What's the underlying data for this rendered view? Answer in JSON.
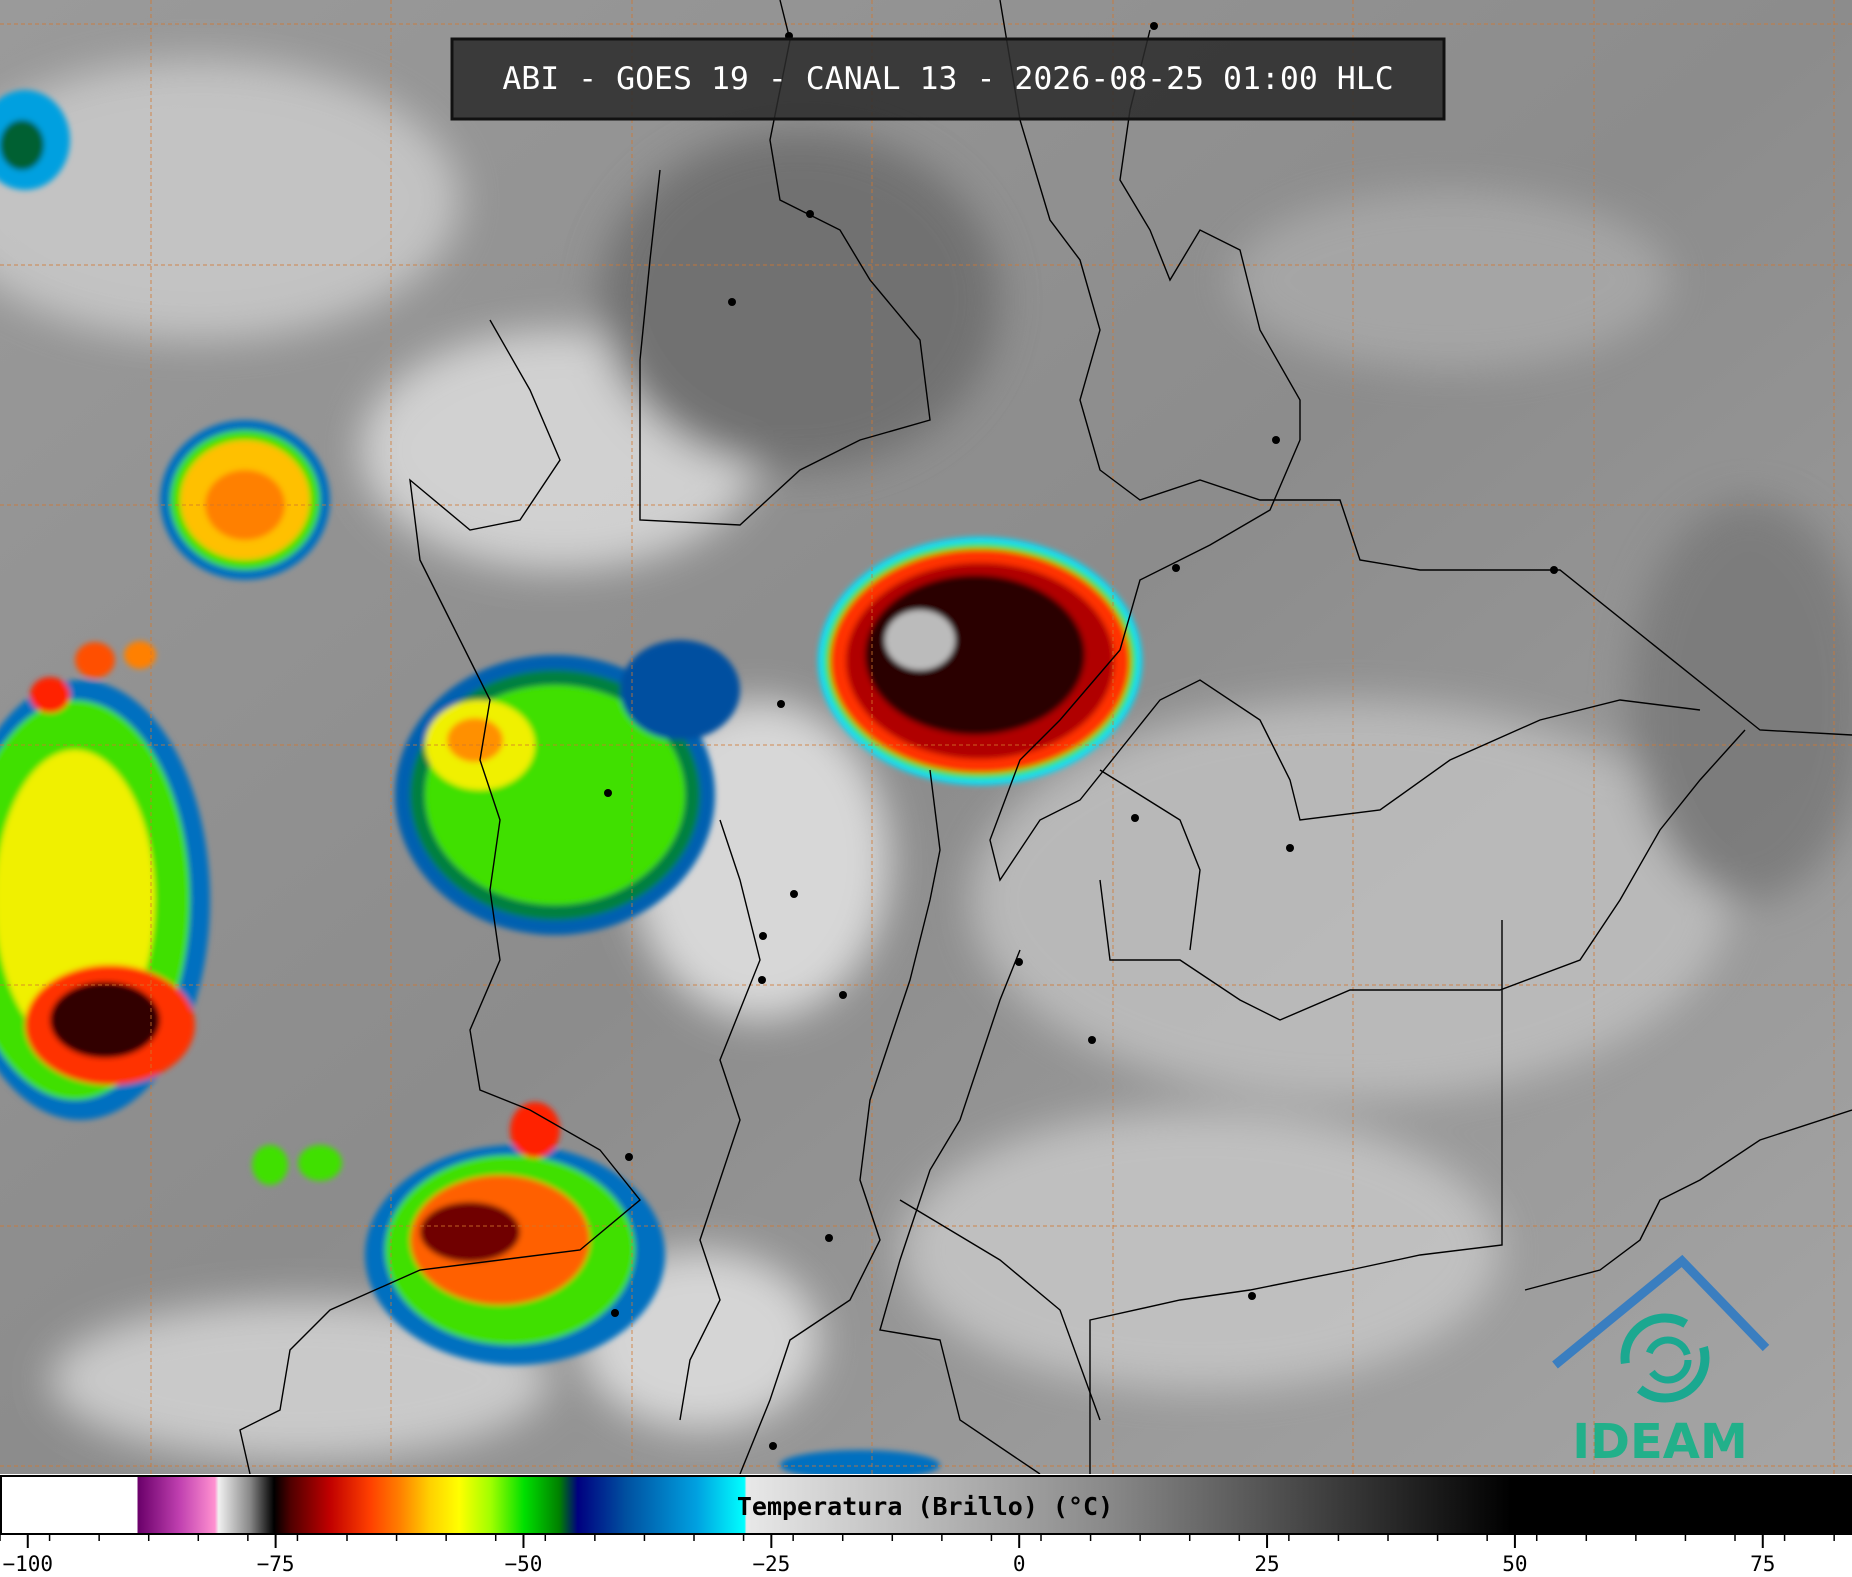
{
  "header": {
    "title": "ABI - GOES 19 - CANAL 13 - 2026-08-25 01:00 HLC"
  },
  "colorbar": {
    "label": "Temperatura (Brillo) (°C)",
    "xlim": [
      -102.8,
      84
    ],
    "xticks": [
      {
        "value": -100,
        "label": "−100"
      },
      {
        "value": -75,
        "label": "−75"
      },
      {
        "value": -50,
        "label": "−50"
      },
      {
        "value": -25,
        "label": "−25"
      },
      0,
      25,
      50,
      75
    ]
  },
  "logo": {
    "text": "IDEAM"
  }
}
